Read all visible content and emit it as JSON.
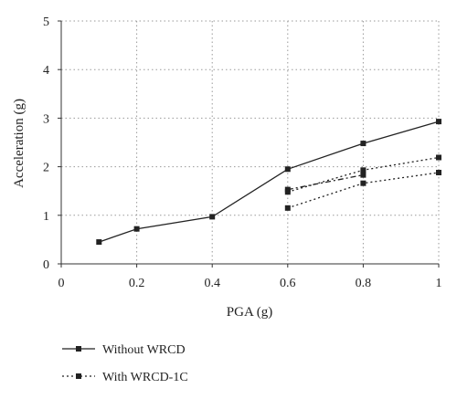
{
  "chart_data": {
    "type": "line",
    "title": "",
    "xlabel": "PGA (g)",
    "ylabel": "Acceleration (g)",
    "xlim": [
      0,
      1
    ],
    "ylim": [
      0,
      5
    ],
    "xticks": [
      0,
      0.2,
      0.4,
      0.6,
      0.8,
      1
    ],
    "yticks": [
      0,
      1,
      2,
      3,
      4,
      5
    ],
    "x_tick_labels": [
      "0",
      "0.2",
      "0.4",
      "0.6",
      "0.8",
      "1"
    ],
    "y_tick_labels": [
      "0",
      "1",
      "2",
      "3",
      "4",
      "5"
    ],
    "grid": true,
    "legend_position": "bottom",
    "series": [
      {
        "name": "Without WRCD",
        "line_style": "solid",
        "color": "#222222",
        "x": [
          0.1,
          0.2,
          0.4,
          0.6,
          0.8,
          1.0
        ],
        "y": [
          0.45,
          0.72,
          0.97,
          1.95,
          2.48,
          2.93
        ]
      },
      {
        "name": "With WRCD-1C",
        "line_style": "dotted",
        "color": "#222222",
        "x": [
          0.6,
          0.8,
          1.0
        ],
        "y": [
          1.15,
          1.66,
          1.88
        ]
      },
      {
        "name": "",
        "line_style": "dotted",
        "color": "#222222",
        "x": [
          0.6,
          0.8,
          1.0
        ],
        "y": [
          1.48,
          1.93,
          2.19
        ]
      },
      {
        "name": "",
        "line_style": "dashdot",
        "color": "#222222",
        "x": [
          0.6,
          0.8
        ],
        "y": [
          1.53,
          1.83
        ]
      }
    ]
  }
}
